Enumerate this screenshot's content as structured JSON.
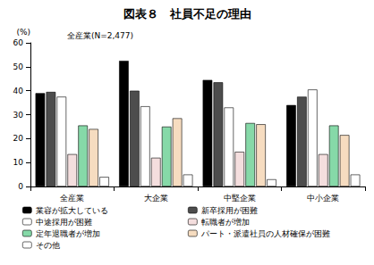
{
  "chart_data": {
    "type": "bar",
    "title": "図表８　社員不足の理由",
    "subtitle": "全産業(N=2,477)",
    "y_label": "(%)",
    "categories": [
      "全産業",
      "大企業",
      "中堅企業",
      "中小企業"
    ],
    "series": [
      {
        "name": "業容が拡大している",
        "color": "#000000",
        "values": [
          39,
          52.5,
          44.5,
          34
        ]
      },
      {
        "name": "新卒採用が困難",
        "color": "#4d4d4d",
        "values": [
          39.5,
          40,
          43.5,
          37.5
        ]
      },
      {
        "name": "中途採用が困難",
        "color": "#ffffff",
        "values": [
          37.5,
          33.5,
          33,
          40.5
        ]
      },
      {
        "name": "転職者が増加",
        "color": "#f4dede",
        "values": [
          13.5,
          12,
          14.5,
          13.5
        ]
      },
      {
        "name": "定年退職者が増加",
        "color": "#86d9a8",
        "values": [
          25.5,
          25,
          26.5,
          25.5
        ]
      },
      {
        "name": "パート・派遣社員の人材確保が困難",
        "color": "#f6dcc0",
        "values": [
          24,
          28.5,
          26,
          21.5
        ]
      },
      {
        "name": "その他",
        "color": "#ffffff",
        "values": [
          4,
          5,
          3,
          5
        ]
      }
    ],
    "ylim": [
      0,
      60
    ],
    "yticks": [
      0,
      10,
      20,
      30,
      40,
      50,
      60
    ],
    "grid": false,
    "legend": "bottom"
  }
}
